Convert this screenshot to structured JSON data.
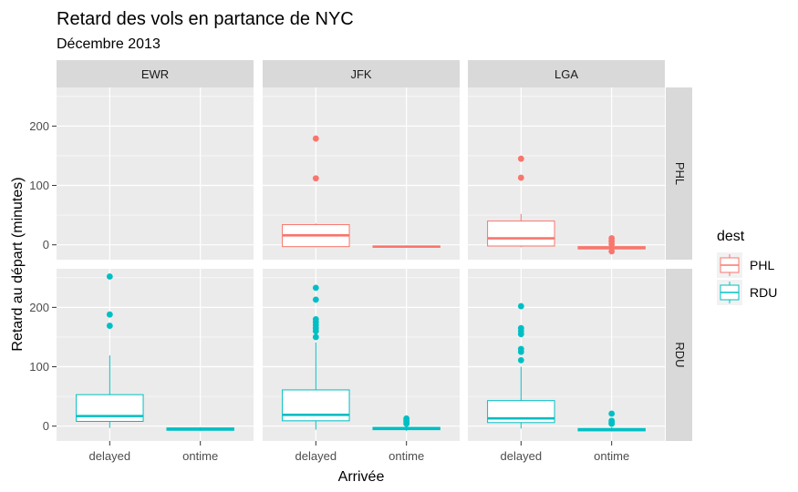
{
  "chart_data": {
    "type": "boxplot",
    "title": "Retard des vols en partance de NYC",
    "subtitle": "Décembre 2013",
    "xlabel": "Arrivée",
    "ylabel": "Retard au départ (minutes)",
    "x_categories": [
      "delayed",
      "ontime"
    ],
    "facet_cols": [
      "EWR",
      "JFK",
      "LGA"
    ],
    "facet_rows": [
      "PHL",
      "RDU"
    ],
    "y_ticks": [
      0,
      100,
      200
    ],
    "ylim": [
      -25,
      265
    ],
    "legend": {
      "title": "dest",
      "entries": [
        {
          "label": "PHL",
          "color": "#F8766D"
        },
        {
          "label": "RDU",
          "color": "#00BFC4"
        }
      ]
    },
    "panel_background": "#EBEBEB",
    "grid_color": "#FFFFFF",
    "strip_background": "#D9D9D9",
    "boxes": [
      {
        "origin": "JFK",
        "dest": "PHL",
        "category": "delayed",
        "min": -4,
        "q1": -3,
        "median": 16,
        "q3": 34,
        "max": 36,
        "outliers": [
          112,
          179
        ]
      },
      {
        "origin": "JFK",
        "dest": "PHL",
        "category": "ontime",
        "min": -5,
        "q1": -4,
        "median": -3,
        "q3": -2,
        "max": -1,
        "outliers": []
      },
      {
        "origin": "LGA",
        "dest": "PHL",
        "category": "delayed",
        "min": -4,
        "q1": -2,
        "median": 11,
        "q3": 40,
        "max": 52,
        "outliers": [
          113,
          145
        ]
      },
      {
        "origin": "LGA",
        "dest": "PHL",
        "category": "ontime",
        "min": -8,
        "q1": -7,
        "median": -5,
        "q3": -3,
        "max": -2,
        "outliers": [
          -11,
          1,
          6,
          11
        ]
      },
      {
        "origin": "EWR",
        "dest": "RDU",
        "category": "delayed",
        "min": -3,
        "q1": 8,
        "median": 17,
        "q3": 53,
        "max": 119,
        "outliers": [
          169,
          188,
          252
        ]
      },
      {
        "origin": "EWR",
        "dest": "RDU",
        "category": "ontime",
        "min": -8,
        "q1": -7,
        "median": -5,
        "q3": -3,
        "max": -2,
        "outliers": []
      },
      {
        "origin": "JFK",
        "dest": "RDU",
        "category": "delayed",
        "min": -6,
        "q1": 9,
        "median": 19,
        "q3": 61,
        "max": 141,
        "outliers": [
          150,
          160,
          165,
          170,
          175,
          180,
          213,
          233
        ]
      },
      {
        "origin": "JFK",
        "dest": "RDU",
        "category": "ontime",
        "min": -8,
        "q1": -6,
        "median": -4,
        "q3": -2,
        "max": 2,
        "outliers": [
          4,
          7,
          9,
          11,
          13
        ]
      },
      {
        "origin": "LGA",
        "dest": "RDU",
        "category": "delayed",
        "min": -4,
        "q1": 6,
        "median": 13,
        "q3": 43,
        "max": 100,
        "outliers": [
          111,
          125,
          130,
          155,
          160,
          165,
          202
        ]
      },
      {
        "origin": "LGA",
        "dest": "RDU",
        "category": "ontime",
        "min": -9,
        "q1": -8,
        "median": -6,
        "q3": -4,
        "max": -2,
        "outliers": [
          4,
          6,
          9,
          21
        ]
      }
    ]
  }
}
